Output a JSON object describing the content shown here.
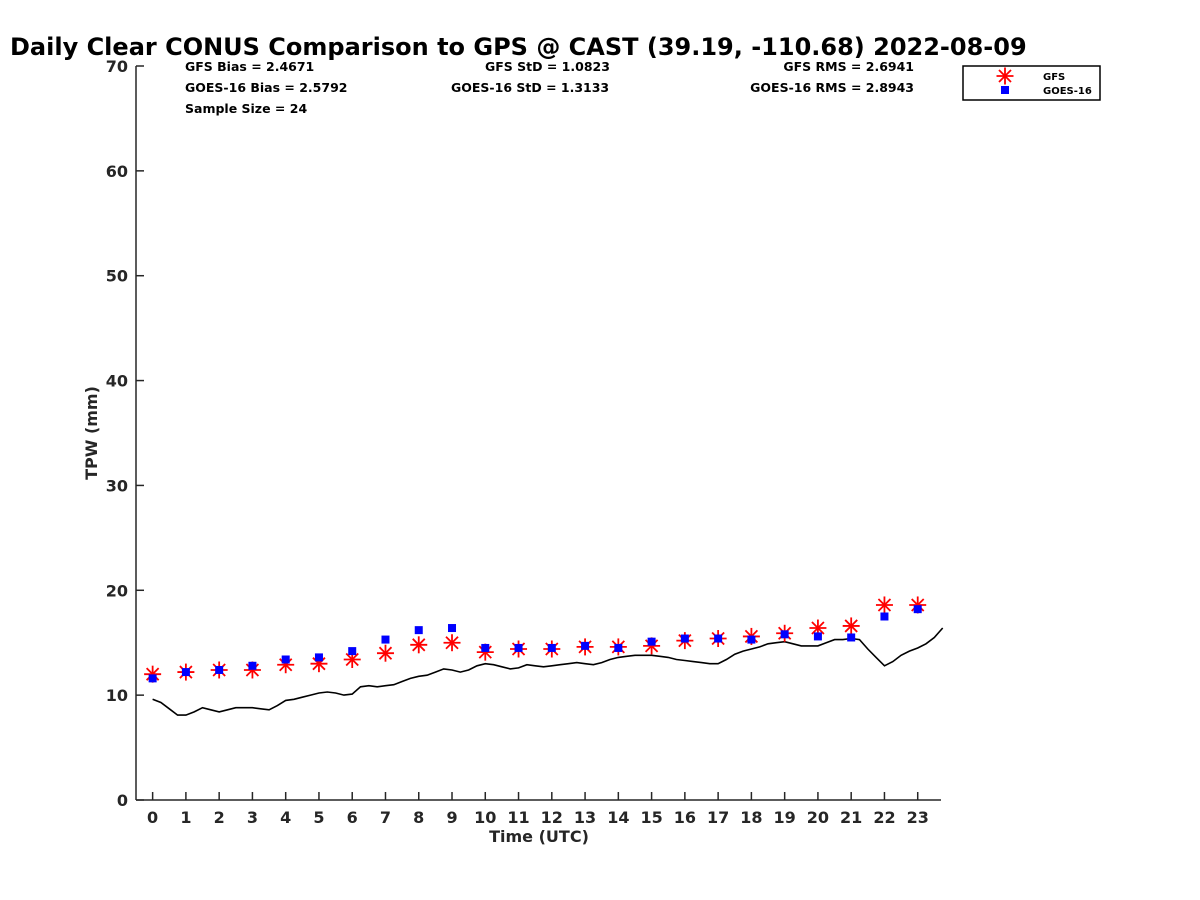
{
  "chart_data": {
    "type": "scatter",
    "title": "Daily Clear CONUS Comparison to GPS @ CAST (39.19, -110.68) 2022-08-09",
    "xlabel": "Time (UTC)",
    "ylabel": "TPW (mm)",
    "xlim": [
      -0.5,
      23.7
    ],
    "ylim": [
      0,
      70
    ],
    "xticks": [
      0,
      1,
      2,
      3,
      4,
      5,
      6,
      7,
      8,
      9,
      10,
      11,
      12,
      13,
      14,
      15,
      16,
      17,
      18,
      19,
      20,
      21,
      22,
      23
    ],
    "yticks": [
      0,
      10,
      20,
      30,
      40,
      50,
      60,
      70
    ],
    "grid": false,
    "legend_position": "top-right",
    "stats": {
      "gfs_bias": "GFS Bias = 2.4671",
      "goes_bias": "GOES-16 Bias = 2.5792",
      "sample_size": "Sample Size = 24",
      "gfs_std": "GFS StD = 1.0823",
      "goes_std": "GOES-16 StD = 1.3133",
      "gfs_rms": "GFS RMS = 2.6941",
      "goes_rms": "GOES-16 RMS = 2.8943"
    },
    "series": [
      {
        "name": "GFS",
        "marker": "asterisk",
        "color": "#ff0000",
        "x": [
          0,
          1,
          2,
          3,
          4,
          5,
          6,
          7,
          8,
          9,
          10,
          11,
          12,
          13,
          14,
          15,
          16,
          17,
          18,
          19,
          20,
          21,
          22,
          23
        ],
        "y": [
          12.0,
          12.2,
          12.4,
          12.4,
          12.9,
          13.0,
          13.4,
          14.0,
          14.8,
          15.0,
          14.1,
          14.4,
          14.4,
          14.6,
          14.6,
          14.7,
          15.2,
          15.4,
          15.6,
          15.9,
          16.4,
          16.6,
          18.6,
          18.6
        ]
      },
      {
        "name": "GOES-16",
        "marker": "square",
        "color": "#0000ff",
        "x": [
          0,
          1,
          2,
          3,
          4,
          5,
          6,
          7,
          8,
          9,
          10,
          11,
          12,
          13,
          14,
          15,
          16,
          17,
          18,
          19,
          20,
          21,
          22,
          23
        ],
        "y": [
          11.6,
          12.2,
          12.4,
          12.8,
          13.4,
          13.6,
          14.2,
          15.3,
          16.2,
          16.4,
          14.5,
          14.5,
          14.5,
          14.7,
          14.5,
          15.1,
          15.4,
          15.4,
          15.3,
          15.8,
          15.6,
          15.5,
          17.5,
          18.2
        ]
      }
    ],
    "gps_line": {
      "color": "#000000",
      "x": [
        0,
        0.25,
        0.5,
        0.75,
        1,
        1.25,
        1.5,
        1.75,
        2,
        2.25,
        2.5,
        2.75,
        3,
        3.25,
        3.5,
        3.75,
        4,
        4.25,
        4.5,
        4.75,
        5,
        5.25,
        5.5,
        5.75,
        6,
        6.25,
        6.5,
        6.75,
        7,
        7.25,
        7.5,
        7.75,
        8,
        8.25,
        8.5,
        8.75,
        9,
        9.25,
        9.5,
        9.75,
        10,
        10.25,
        10.5,
        10.75,
        11,
        11.25,
        11.5,
        11.75,
        12,
        12.25,
        12.5,
        12.75,
        13,
        13.25,
        13.5,
        13.75,
        14,
        14.25,
        14.5,
        14.75,
        15,
        15.25,
        15.5,
        15.75,
        16,
        16.25,
        16.5,
        16.75,
        17,
        17.25,
        17.5,
        17.75,
        18,
        18.25,
        18.5,
        18.75,
        19,
        19.25,
        19.5,
        19.75,
        20,
        20.25,
        20.5,
        20.75,
        21,
        21.25,
        21.5,
        21.75,
        22,
        22.25,
        22.5,
        22.75,
        23,
        23.25,
        23.5,
        23.75
      ],
      "y": [
        9.6,
        9.3,
        8.7,
        8.1,
        8.1,
        8.4,
        8.8,
        8.6,
        8.4,
        8.6,
        8.8,
        8.8,
        8.8,
        8.7,
        8.6,
        9.0,
        9.5,
        9.6,
        9.8,
        10.0,
        10.2,
        10.3,
        10.2,
        10.0,
        10.1,
        10.8,
        10.9,
        10.8,
        10.9,
        11.0,
        11.3,
        11.6,
        11.8,
        11.9,
        12.2,
        12.5,
        12.4,
        12.2,
        12.4,
        12.8,
        13.0,
        12.9,
        12.7,
        12.5,
        12.6,
        12.9,
        12.8,
        12.7,
        12.8,
        12.9,
        13.0,
        13.1,
        13.0,
        12.9,
        13.1,
        13.4,
        13.6,
        13.7,
        13.8,
        13.8,
        13.8,
        13.7,
        13.6,
        13.4,
        13.3,
        13.2,
        13.1,
        13.0,
        13.0,
        13.4,
        13.9,
        14.2,
        14.4,
        14.6,
        14.9,
        15.0,
        15.1,
        14.9,
        14.7,
        14.7,
        14.7,
        15.0,
        15.3,
        15.3,
        15.4,
        15.3,
        14.4,
        13.6,
        12.8,
        13.2,
        13.8,
        14.2,
        14.5,
        14.9,
        15.5,
        16.4
      ]
    }
  }
}
